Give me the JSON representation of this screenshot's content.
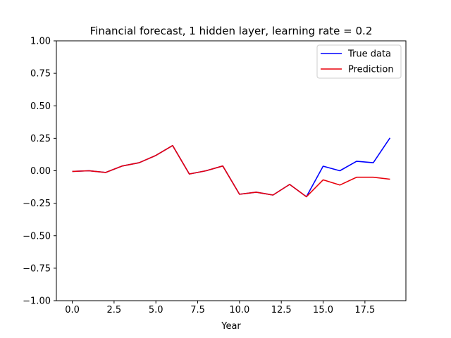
{
  "chart_data": {
    "type": "line",
    "title": "Financial forecast, 1 hidden layer, learning rate = 0.2",
    "xlabel": "Year",
    "ylabel": "",
    "xlim": [
      -0.95,
      19.95
    ],
    "ylim": [
      -1.0,
      1.0
    ],
    "xticks": [
      0.0,
      2.5,
      5.0,
      7.5,
      10.0,
      12.5,
      15.0,
      17.5
    ],
    "xtick_labels": [
      "0.0",
      "2.5",
      "5.0",
      "7.5",
      "10.0",
      "12.5",
      "15.0",
      "17.5"
    ],
    "yticks": [
      -1.0,
      -0.75,
      -0.5,
      -0.25,
      0.0,
      0.25,
      0.5,
      0.75,
      1.0
    ],
    "ytick_labels": [
      "−1.00",
      "−0.75",
      "−0.50",
      "−0.25",
      "0.00",
      "0.25",
      "0.50",
      "0.75",
      "1.00"
    ],
    "grid": false,
    "legend_position": "top-right",
    "x": [
      0,
      1,
      2,
      3,
      4,
      5,
      6,
      7,
      8,
      9,
      10,
      11,
      12,
      13,
      14,
      15,
      16,
      17,
      18,
      19
    ],
    "series": [
      {
        "name": "True data",
        "color": "#0000ff",
        "values": [
          -0.005,
          0.0,
          -0.013,
          0.037,
          0.062,
          0.118,
          0.194,
          -0.025,
          0.0,
          0.037,
          -0.181,
          -0.165,
          -0.187,
          -0.105,
          -0.2,
          0.035,
          0.0,
          0.073,
          0.062,
          0.253
        ]
      },
      {
        "name": "Prediction",
        "color": "#e8000b",
        "values": [
          -0.005,
          0.0,
          -0.013,
          0.037,
          0.062,
          0.118,
          0.194,
          -0.025,
          0.0,
          0.037,
          -0.181,
          -0.165,
          -0.187,
          -0.105,
          -0.2,
          -0.07,
          -0.11,
          -0.05,
          -0.05,
          -0.065
        ]
      }
    ]
  }
}
